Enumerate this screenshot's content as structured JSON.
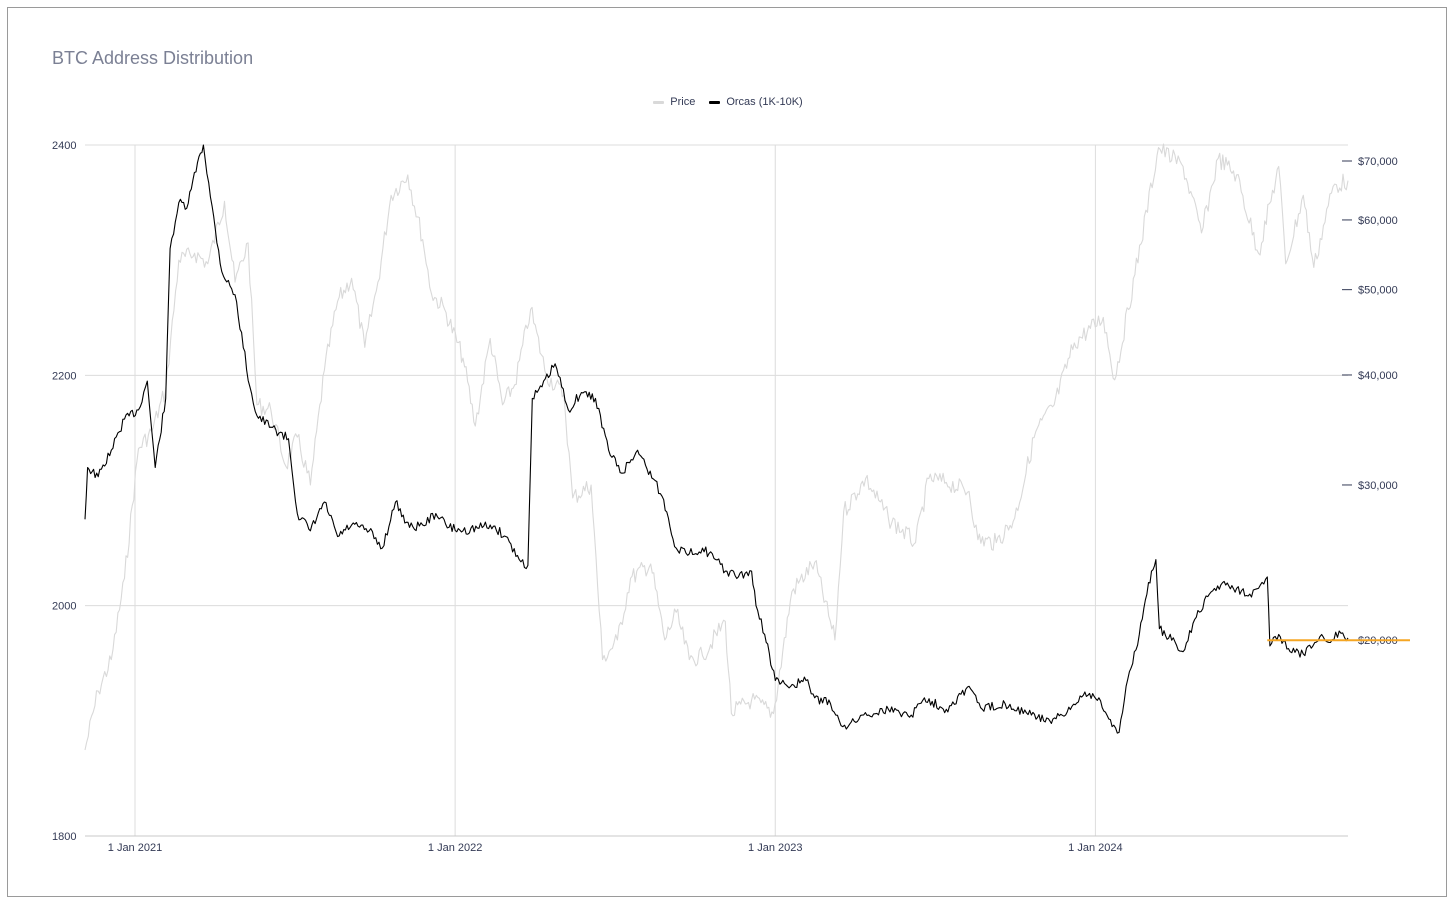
{
  "chart_data": {
    "type": "line",
    "title": "BTC Address Distribution",
    "legend_position": "top-center",
    "grid": true,
    "x_range": [
      "2020-11-05",
      "2024-10-15"
    ],
    "x_ticks": [
      {
        "date": "2021-01-01",
        "label": "1 Jan 2021"
      },
      {
        "date": "2022-01-01",
        "label": "1 Jan 2022"
      },
      {
        "date": "2023-01-01",
        "label": "1 Jan 2023"
      },
      {
        "date": "2024-01-01",
        "label": "1 Jan 2024"
      }
    ],
    "y_left": {
      "range": [
        1800,
        2400
      ],
      "ticks": [
        "1800",
        "2000",
        "2200",
        "2400"
      ]
    },
    "y_right": {
      "scale": "log",
      "ticks": [
        {
          "value": 20000,
          "label": "$20,000"
        },
        {
          "value": 30000,
          "label": "$30,000"
        },
        {
          "value": 40000,
          "label": "$40,000"
        },
        {
          "value": 50000,
          "label": "$50,000"
        },
        {
          "value": 60000,
          "label": "$60,000"
        },
        {
          "value": 70000,
          "label": "$70,000"
        }
      ]
    },
    "series": [
      {
        "name": "Price",
        "color": "#d9d9d9",
        "axis": "right",
        "points": [
          [
            "2020-11-05",
            15000
          ],
          [
            "2020-11-20",
            17500
          ],
          [
            "2020-12-05",
            19000
          ],
          [
            "2020-12-20",
            23500
          ],
          [
            "2021-01-05",
            33000
          ],
          [
            "2021-01-20",
            34500
          ],
          [
            "2021-02-05",
            38500
          ],
          [
            "2021-02-20",
            54000
          ],
          [
            "2021-03-10",
            55000
          ],
          [
            "2021-03-25",
            53500
          ],
          [
            "2021-04-13",
            63000
          ],
          [
            "2021-04-25",
            51000
          ],
          [
            "2021-05-10",
            56500
          ],
          [
            "2021-05-20",
            37000
          ],
          [
            "2021-06-05",
            36500
          ],
          [
            "2021-06-22",
            31500
          ],
          [
            "2021-07-05",
            34000
          ],
          [
            "2021-07-20",
            30000
          ],
          [
            "2021-08-05",
            40500
          ],
          [
            "2021-08-20",
            48500
          ],
          [
            "2021-09-05",
            51500
          ],
          [
            "2021-09-20",
            43000
          ],
          [
            "2021-10-05",
            51000
          ],
          [
            "2021-10-20",
            64000
          ],
          [
            "2021-11-08",
            67500
          ],
          [
            "2021-11-25",
            57000
          ],
          [
            "2021-12-05",
            49500
          ],
          [
            "2021-12-20",
            47500
          ],
          [
            "2022-01-10",
            41800
          ],
          [
            "2022-01-24",
            35000
          ],
          [
            "2022-02-10",
            44000
          ],
          [
            "2022-02-24",
            37000
          ],
          [
            "2022-03-10",
            39000
          ],
          [
            "2022-03-28",
            47500
          ],
          [
            "2022-04-15",
            40000
          ],
          [
            "2022-05-05",
            38000
          ],
          [
            "2022-05-15",
            29000
          ],
          [
            "2022-06-05",
            30000
          ],
          [
            "2022-06-18",
            19000
          ],
          [
            "2022-07-05",
            20000
          ],
          [
            "2022-07-20",
            23500
          ],
          [
            "2022-08-12",
            24400
          ],
          [
            "2022-08-28",
            20000
          ],
          [
            "2022-09-10",
            21500
          ],
          [
            "2022-09-25",
            19000
          ],
          [
            "2022-10-10",
            19200
          ],
          [
            "2022-11-05",
            21000
          ],
          [
            "2022-11-12",
            16500
          ],
          [
            "2022-12-05",
            17100
          ],
          [
            "2022-12-30",
            16500
          ],
          [
            "2023-01-20",
            22700
          ],
          [
            "2023-02-15",
            24500
          ],
          [
            "2023-03-10",
            20000
          ],
          [
            "2023-03-20",
            28000
          ],
          [
            "2023-04-14",
            30500
          ],
          [
            "2023-05-10",
            27500
          ],
          [
            "2023-06-10",
            25800
          ],
          [
            "2023-06-25",
            30500
          ],
          [
            "2023-07-15",
            30200
          ],
          [
            "2023-08-10",
            29500
          ],
          [
            "2023-08-20",
            26000
          ],
          [
            "2023-09-10",
            25800
          ],
          [
            "2023-10-01",
            27500
          ],
          [
            "2023-10-25",
            34500
          ],
          [
            "2023-11-15",
            37000
          ],
          [
            "2023-12-08",
            43500
          ],
          [
            "2024-01-10",
            46500
          ],
          [
            "2024-01-23",
            39500
          ],
          [
            "2024-02-15",
            52000
          ],
          [
            "2024-03-13",
            72500
          ],
          [
            "2024-04-10",
            69000
          ],
          [
            "2024-05-01",
            58000
          ],
          [
            "2024-05-20",
            70500
          ],
          [
            "2024-06-10",
            67500
          ],
          [
            "2024-07-05",
            55000
          ],
          [
            "2024-07-28",
            69000
          ],
          [
            "2024-08-05",
            53500
          ],
          [
            "2024-08-25",
            64000
          ],
          [
            "2024-09-06",
            53000
          ],
          [
            "2024-09-28",
            65500
          ],
          [
            "2024-10-15",
            66500
          ]
        ]
      },
      {
        "name": "Orcas (1K-10K)",
        "color": "#000000",
        "axis": "left",
        "points": [
          [
            "2020-11-05",
            2075
          ],
          [
            "2020-11-08",
            2120
          ],
          [
            "2020-11-20",
            2112
          ],
          [
            "2020-12-05",
            2135
          ],
          [
            "2020-12-20",
            2162
          ],
          [
            "2021-01-05",
            2170
          ],
          [
            "2021-01-15",
            2195
          ],
          [
            "2021-01-24",
            2120
          ],
          [
            "2021-02-05",
            2180
          ],
          [
            "2021-02-10",
            2310
          ],
          [
            "2021-02-20",
            2350
          ],
          [
            "2021-03-01",
            2345
          ],
          [
            "2021-03-15",
            2390
          ],
          [
            "2021-03-20",
            2400
          ],
          [
            "2021-03-28",
            2355
          ],
          [
            "2021-04-10",
            2290
          ],
          [
            "2021-04-25",
            2270
          ],
          [
            "2021-05-12",
            2190
          ],
          [
            "2021-05-20",
            2165
          ],
          [
            "2021-06-05",
            2155
          ],
          [
            "2021-06-25",
            2145
          ],
          [
            "2021-07-05",
            2080
          ],
          [
            "2021-07-20",
            2065
          ],
          [
            "2021-08-05",
            2090
          ],
          [
            "2021-08-20",
            2060
          ],
          [
            "2021-09-05",
            2070
          ],
          [
            "2021-09-25",
            2065
          ],
          [
            "2021-10-10",
            2050
          ],
          [
            "2021-10-25",
            2090
          ],
          [
            "2021-11-10",
            2068
          ],
          [
            "2021-11-25",
            2070
          ],
          [
            "2021-12-10",
            2080
          ],
          [
            "2021-12-25",
            2068
          ],
          [
            "2022-01-10",
            2065
          ],
          [
            "2022-02-10",
            2070
          ],
          [
            "2022-02-28",
            2060
          ],
          [
            "2022-03-15",
            2040
          ],
          [
            "2022-03-25",
            2035
          ],
          [
            "2022-03-30",
            2180
          ],
          [
            "2022-04-10",
            2190
          ],
          [
            "2022-04-25",
            2210
          ],
          [
            "2022-05-10",
            2170
          ],
          [
            "2022-05-25",
            2185
          ],
          [
            "2022-06-10",
            2180
          ],
          [
            "2022-06-25",
            2135
          ],
          [
            "2022-07-10",
            2115
          ],
          [
            "2022-07-28",
            2135
          ],
          [
            "2022-08-15",
            2110
          ],
          [
            "2022-08-25",
            2095
          ],
          [
            "2022-09-10",
            2050
          ],
          [
            "2022-09-25",
            2045
          ],
          [
            "2022-10-10",
            2050
          ],
          [
            "2022-10-25",
            2040
          ],
          [
            "2022-11-05",
            2030
          ],
          [
            "2022-11-20",
            2025
          ],
          [
            "2022-12-05",
            2030
          ],
          [
            "2022-12-10",
            2000
          ],
          [
            "2022-12-20",
            1975
          ],
          [
            "2023-01-01",
            1935
          ],
          [
            "2023-01-15",
            1930
          ],
          [
            "2023-02-05",
            1935
          ],
          [
            "2023-02-15",
            1920
          ],
          [
            "2023-03-05",
            1915
          ],
          [
            "2023-03-15",
            1900
          ],
          [
            "2023-03-25",
            1895
          ],
          [
            "2023-04-10",
            1905
          ],
          [
            "2023-05-10",
            1910
          ],
          [
            "2023-06-05",
            1905
          ],
          [
            "2023-06-20",
            1920
          ],
          [
            "2023-07-15",
            1910
          ],
          [
            "2023-08-10",
            1930
          ],
          [
            "2023-08-25",
            1910
          ],
          [
            "2023-09-20",
            1915
          ],
          [
            "2023-10-20",
            1905
          ],
          [
            "2023-11-10",
            1900
          ],
          [
            "2023-11-28",
            1905
          ],
          [
            "2023-12-20",
            1925
          ],
          [
            "2024-01-05",
            1920
          ],
          [
            "2024-01-20",
            1895
          ],
          [
            "2024-01-28",
            1890
          ],
          [
            "2024-02-05",
            1930
          ],
          [
            "2024-02-20",
            1975
          ],
          [
            "2024-03-05",
            2030
          ],
          [
            "2024-03-10",
            2040
          ],
          [
            "2024-03-14",
            1980
          ],
          [
            "2024-03-28",
            1970
          ],
          [
            "2024-04-10",
            1960
          ],
          [
            "2024-04-25",
            1990
          ],
          [
            "2024-05-10",
            2010
          ],
          [
            "2024-05-25",
            2020
          ],
          [
            "2024-06-10",
            2015
          ],
          [
            "2024-06-25",
            2010
          ],
          [
            "2024-07-05",
            2015
          ],
          [
            "2024-07-15",
            2025
          ],
          [
            "2024-07-18",
            1965
          ],
          [
            "2024-07-28",
            1975
          ],
          [
            "2024-08-10",
            1960
          ],
          [
            "2024-08-25",
            1958
          ],
          [
            "2024-09-05",
            1965
          ],
          [
            "2024-09-15",
            1975
          ],
          [
            "2024-09-25",
            1968
          ],
          [
            "2024-10-05",
            1978
          ],
          [
            "2024-10-15",
            1972
          ]
        ]
      }
    ],
    "annotations": [
      {
        "type": "horizontal-line",
        "color": "#f5a623",
        "y": 1970,
        "x_start": "2024-07-15"
      }
    ]
  }
}
